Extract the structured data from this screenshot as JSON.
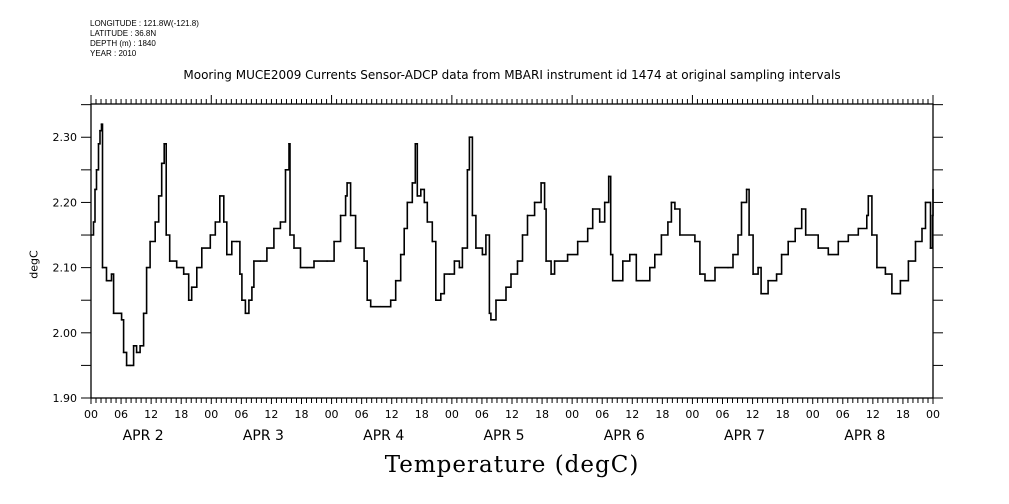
{
  "header": {
    "meta_lines": [
      "LONGITUDE : 121.8W(-121.8)",
      "LATITUDE : 36.8N",
      "DEPTH (m) : 1840",
      "YEAR : 2010"
    ]
  },
  "chart_data": {
    "type": "line",
    "title": "Mooring MUCE2009 Currents Sensor-ADCP data from MBARI instrument id 1474 at original sampling intervals",
    "xlabel": "Temperature (degC)",
    "ylabel": "degC",
    "ylim": [
      1.9,
      2.351
    ],
    "yticks": [
      1.9,
      2.0,
      2.1,
      2.2,
      2.3
    ],
    "ytick_labels": [
      "1.90",
      "2.00",
      "2.10",
      "2.20",
      "2.30"
    ],
    "xlim_hours": [
      0,
      168
    ],
    "x_units": "hours since APR 2 2010 00:00",
    "xtick_hours": [
      0,
      6,
      12,
      18,
      24,
      30,
      36,
      42,
      48,
      54,
      60,
      66,
      72,
      78,
      84,
      90,
      96,
      102,
      108,
      114,
      120,
      126,
      132,
      138,
      144,
      150,
      156,
      162,
      168
    ],
    "xtick_labels": [
      "00",
      "06",
      "12",
      "18",
      "00",
      "06",
      "12",
      "18",
      "00",
      "06",
      "12",
      "18",
      "00",
      "06",
      "12",
      "18",
      "00",
      "06",
      "12",
      "18",
      "00",
      "06",
      "12",
      "18",
      "00",
      "06",
      "12",
      "18",
      "00"
    ],
    "day_labels": [
      "APR  2",
      "APR  3",
      "APR  4",
      "APR  5",
      "APR  6",
      "APR  7",
      "APR  8"
    ],
    "grid": false,
    "series": [
      {
        "name": "Temperature",
        "color": "#000000",
        "x": [
          0,
          0.5,
          0.8,
          1.1,
          1.5,
          1.8,
          2.1,
          2.3,
          3.1,
          4.1,
          4.5,
          6.1,
          6.5,
          7.1,
          7.8,
          8.5,
          9.1,
          9.8,
          10.5,
          11.1,
          11.8,
          12.8,
          13.5,
          14.1,
          14.6,
          15,
          15.7,
          17.1,
          18.5,
          19.5,
          20.1,
          21.1,
          22.1,
          23.8,
          24.8,
          25.7,
          26.5,
          27.1,
          28.1,
          29.1,
          29.7,
          30.1,
          30.8,
          31.5,
          32.1,
          32.5,
          33.8,
          35.1,
          36.5,
          37.8,
          38.8,
          39.5,
          39.7,
          40.5,
          41.8,
          43.1,
          44.5,
          47.1,
          48.5,
          49.8,
          50.8,
          51.1,
          51.8,
          52.8,
          54.5,
          55.1,
          55.8,
          57.8,
          59.8,
          60.8,
          61.8,
          62.5,
          63.1,
          64.1,
          64.7,
          65.1,
          65.8,
          66.5,
          67.1,
          68.1,
          68.8,
          69.8,
          70.5,
          71.5,
          72.5,
          73.5,
          74.1,
          75.1,
          75.5,
          76.1,
          76.8,
          78.1,
          78.8,
          79.5,
          79.8,
          80.8,
          82.1,
          82.8,
          83.8,
          85.1,
          86.1,
          87.1,
          88.5,
          89.8,
          90.5,
          90.8,
          91.8,
          92.5,
          95.1,
          97.1,
          99.1,
          100.1,
          101.5,
          102.5,
          103.3,
          103.7,
          104.1,
          105.5,
          106.1,
          107.5,
          108.5,
          108.8,
          110.1,
          111.5,
          112.5,
          113.8,
          115.1,
          115.8,
          116.5,
          117.5,
          120.5,
          121.5,
          122.5,
          124.5,
          127.1,
          128.1,
          129.1,
          129.8,
          130.8,
          131.3,
          132.1,
          133.1,
          133.7,
          135.1,
          136.8,
          137.8,
          139.1,
          140.5,
          141.8,
          142.6,
          145.1,
          147.1,
          149.1,
          151.1,
          153.1,
          154.8,
          155.1,
          155.8,
          156.8,
          158.5,
          159.8,
          161.5,
          163.1,
          164.5,
          165.8,
          166.5,
          167.5,
          167.9,
          168
        ],
        "y": [
          2.15,
          2.17,
          2.22,
          2.25,
          2.29,
          2.31,
          2.32,
          2.1,
          2.08,
          2.09,
          2.03,
          2.02,
          1.97,
          1.95,
          1.95,
          1.98,
          1.97,
          1.98,
          2.03,
          2.1,
          2.14,
          2.17,
          2.21,
          2.26,
          2.29,
          2.15,
          2.11,
          2.1,
          2.09,
          2.05,
          2.07,
          2.1,
          2.13,
          2.15,
          2.17,
          2.21,
          2.17,
          2.12,
          2.14,
          2.14,
          2.09,
          2.05,
          2.03,
          2.05,
          2.07,
          2.11,
          2.11,
          2.13,
          2.16,
          2.17,
          2.25,
          2.29,
          2.15,
          2.13,
          2.1,
          2.1,
          2.11,
          2.11,
          2.14,
          2.18,
          2.21,
          2.23,
          2.18,
          2.13,
          2.11,
          2.05,
          2.04,
          2.04,
          2.05,
          2.08,
          2.12,
          2.16,
          2.2,
          2.23,
          2.29,
          2.21,
          2.22,
          2.2,
          2.17,
          2.14,
          2.05,
          2.06,
          2.09,
          2.09,
          2.11,
          2.1,
          2.13,
          2.25,
          2.3,
          2.18,
          2.13,
          2.12,
          2.15,
          2.03,
          2.02,
          2.05,
          2.05,
          2.07,
          2.09,
          2.11,
          2.15,
          2.18,
          2.2,
          2.23,
          2.19,
          2.11,
          2.09,
          2.11,
          2.12,
          2.14,
          2.16,
          2.19,
          2.17,
          2.2,
          2.24,
          2.12,
          2.08,
          2.08,
          2.11,
          2.12,
          2.12,
          2.08,
          2.08,
          2.1,
          2.12,
          2.15,
          2.17,
          2.2,
          2.19,
          2.15,
          2.14,
          2.09,
          2.08,
          2.1,
          2.1,
          2.12,
          2.15,
          2.2,
          2.22,
          2.15,
          2.09,
          2.1,
          2.06,
          2.08,
          2.09,
          2.12,
          2.14,
          2.16,
          2.19,
          2.15,
          2.13,
          2.12,
          2.14,
          2.15,
          2.16,
          2.18,
          2.21,
          2.15,
          2.1,
          2.09,
          2.06,
          2.08,
          2.11,
          2.14,
          2.16,
          2.2,
          2.13,
          2.18,
          2.22
        ]
      }
    ]
  }
}
